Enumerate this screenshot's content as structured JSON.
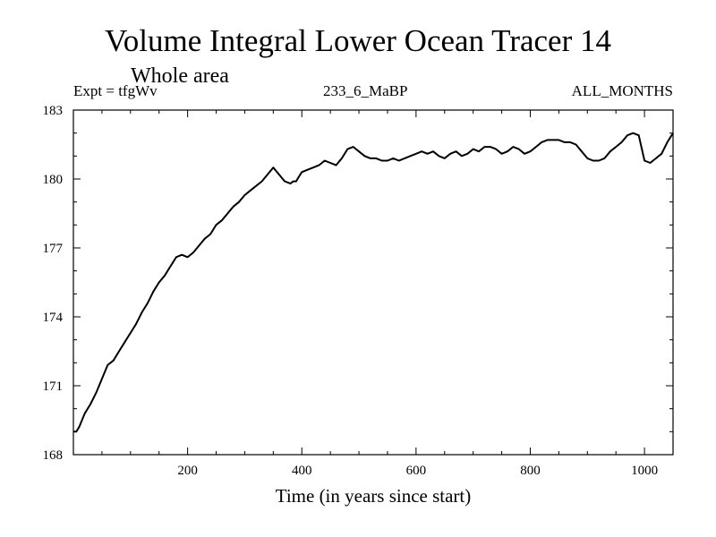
{
  "header": {
    "title": "Volume Integral Lower Ocean Tracer 14",
    "subtitle": "Whole area",
    "left": "Expt = tfgWv",
    "center": "233_6_MaBP",
    "right": "ALL_MONTHS"
  },
  "colors": {
    "line": "#000000",
    "background": "#ffffff"
  },
  "chart_data": {
    "type": "line",
    "title": "Volume Integral Lower Ocean Tracer 14",
    "subtitle": "Whole area",
    "xlabel": "Time (in years since start)",
    "ylabel": "",
    "xlim": [
      0,
      1050
    ],
    "ylim": [
      168,
      183
    ],
    "xticks": [
      200,
      400,
      600,
      800,
      1000
    ],
    "yticks": [
      168,
      171,
      174,
      177,
      180,
      183
    ],
    "grid": false,
    "series": [
      {
        "name": "Lower Ocean Tracer 14",
        "x": [
          0,
          5,
          10,
          20,
          30,
          40,
          50,
          60,
          70,
          80,
          90,
          100,
          110,
          120,
          130,
          140,
          150,
          160,
          170,
          180,
          190,
          200,
          210,
          220,
          230,
          240,
          250,
          260,
          270,
          280,
          290,
          300,
          310,
          320,
          330,
          340,
          350,
          360,
          370,
          380,
          385,
          390,
          395,
          400,
          410,
          420,
          430,
          440,
          450,
          460,
          470,
          480,
          490,
          500,
          510,
          520,
          530,
          540,
          550,
          560,
          570,
          580,
          590,
          600,
          610,
          620,
          630,
          640,
          650,
          660,
          670,
          680,
          690,
          700,
          710,
          720,
          730,
          740,
          750,
          760,
          770,
          780,
          790,
          800,
          810,
          820,
          830,
          840,
          850,
          860,
          870,
          880,
          890,
          900,
          910,
          920,
          930,
          940,
          950,
          960,
          970,
          980,
          990,
          1000,
          1010,
          1020,
          1030,
          1040,
          1050
        ],
        "values": [
          169.0,
          169.0,
          169.2,
          169.8,
          170.2,
          170.7,
          171.3,
          171.9,
          172.1,
          172.5,
          172.9,
          173.3,
          173.7,
          174.2,
          174.6,
          175.1,
          175.5,
          175.8,
          176.2,
          176.6,
          176.7,
          176.6,
          176.8,
          177.1,
          177.4,
          177.6,
          178.0,
          178.2,
          178.5,
          178.8,
          179.0,
          179.3,
          179.5,
          179.7,
          179.9,
          180.2,
          180.5,
          180.2,
          179.9,
          179.8,
          179.9,
          179.9,
          180.1,
          180.3,
          180.4,
          180.5,
          180.6,
          180.8,
          180.7,
          180.6,
          180.9,
          181.3,
          181.4,
          181.2,
          181.0,
          180.9,
          180.9,
          180.8,
          180.8,
          180.9,
          180.8,
          180.9,
          181.0,
          181.1,
          181.2,
          181.1,
          181.2,
          181.0,
          180.9,
          181.1,
          181.2,
          181.0,
          181.1,
          181.3,
          181.2,
          181.4,
          181.4,
          181.3,
          181.1,
          181.2,
          181.4,
          181.3,
          181.1,
          181.2,
          181.4,
          181.6,
          181.7,
          181.7,
          181.7,
          181.6,
          181.6,
          181.5,
          181.2,
          180.9,
          180.8,
          180.8,
          180.9,
          181.2,
          181.4,
          181.6,
          181.9,
          182.0,
          181.9,
          180.8,
          180.7,
          180.9,
          181.1,
          181.6,
          182.0
        ]
      }
    ]
  }
}
